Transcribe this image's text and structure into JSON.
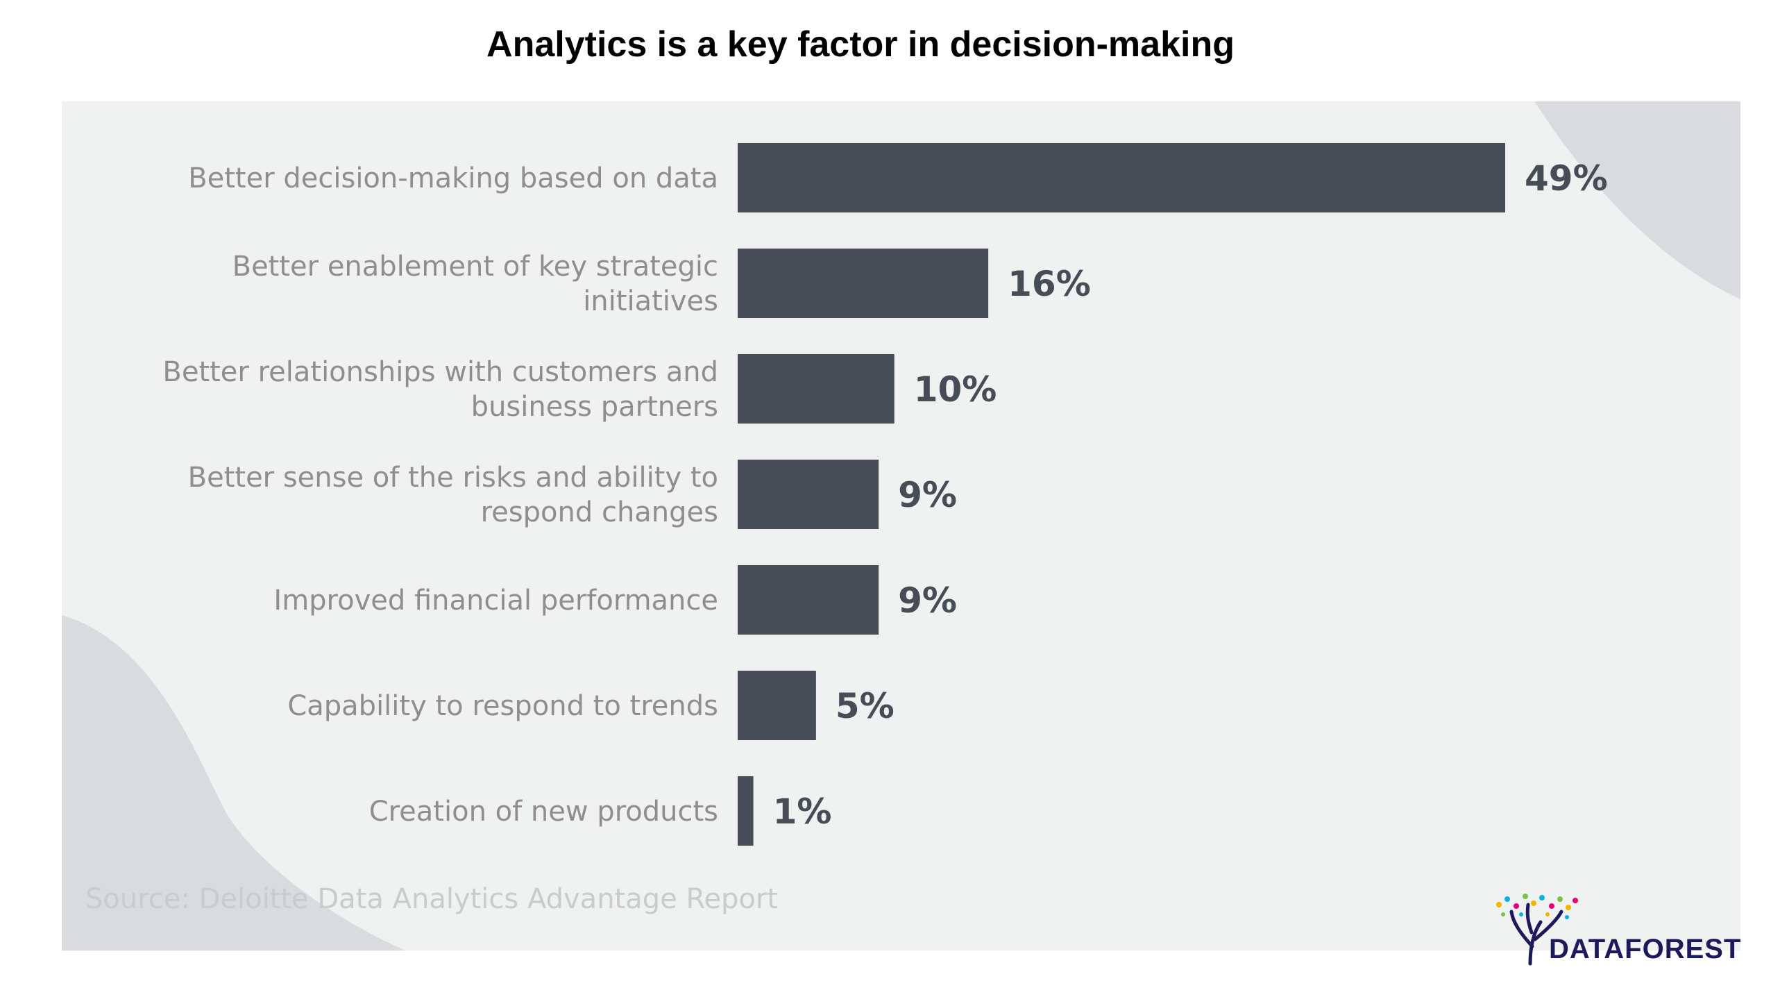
{
  "title": "Analytics is a key factor in decision-making",
  "source": "Source: Deloitte Data Analytics Advantage Report",
  "logo": {
    "text": "DATAFOREST"
  },
  "colors": {
    "bar": "#474d56",
    "panel": "#f0f1f1",
    "label": "#8e8e8e",
    "decor": "#d9dbdf",
    "logo_text": "#1d1a5c"
  },
  "chart_data": {
    "type": "bar",
    "orientation": "horizontal",
    "title": "Analytics is a key factor in decision-making",
    "xlabel": "",
    "ylabel": "",
    "categories": [
      [
        "Better decision-making based on data"
      ],
      [
        "Better enablement of key strategic",
        "initiatives"
      ],
      [
        "Better relationships with customers and",
        "business partners"
      ],
      [
        "Better sense of the risks and ability to",
        "respond changes"
      ],
      [
        "Improved financial performance"
      ],
      [
        "Capability to respond to trends"
      ],
      [
        "Creation of new products"
      ]
    ],
    "values": [
      49,
      16,
      10,
      9,
      9,
      5,
      1
    ],
    "value_labels": [
      "49%",
      "16%",
      "10%",
      "9%",
      "9%",
      "5%",
      "1%"
    ],
    "xlim": [
      0,
      49
    ],
    "grid": false,
    "legend": "none"
  }
}
